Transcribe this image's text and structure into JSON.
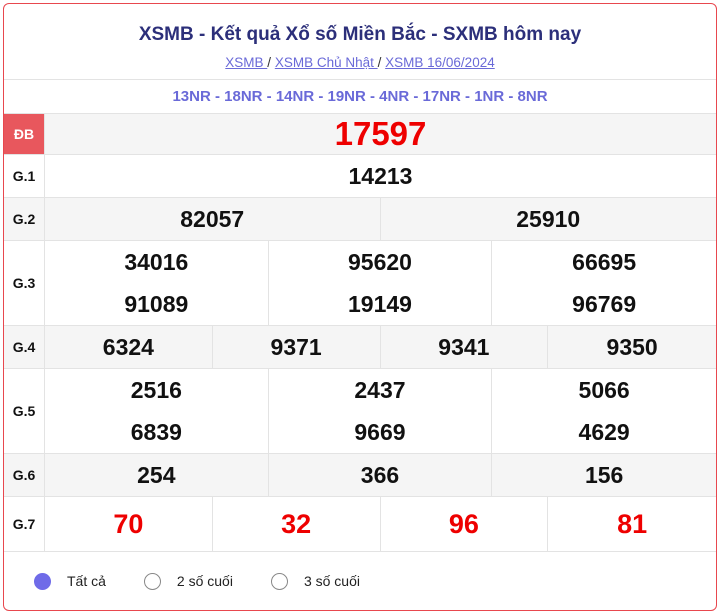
{
  "title": "XSMB - Kết quả Xổ số Miền Bắc - SXMB hôm nay",
  "breadcrumb": [
    "XSMB ",
    "XSMB Chủ Nhật ",
    "XSMB 16/06/2024"
  ],
  "separator": "/",
  "codes": "13NR - 18NR - 14NR - 19NR - 4NR - 17NR - 1NR - 8NR",
  "prizes": {
    "db": {
      "label": "ĐB",
      "values": [
        "17597"
      ]
    },
    "g1": {
      "label": "G.1",
      "values": [
        "14213"
      ]
    },
    "g2": {
      "label": "G.2",
      "values": [
        "82057",
        "25910"
      ]
    },
    "g3": {
      "label": "G.3",
      "values": [
        "34016",
        "95620",
        "66695",
        "91089",
        "19149",
        "96769"
      ]
    },
    "g4": {
      "label": "G.4",
      "values": [
        "6324",
        "9371",
        "9341",
        "9350"
      ]
    },
    "g5": {
      "label": "G.5",
      "values": [
        "2516",
        "2437",
        "5066",
        "6839",
        "9669",
        "4629"
      ]
    },
    "g6": {
      "label": "G.6",
      "values": [
        "254",
        "366",
        "156"
      ]
    },
    "g7": {
      "label": "G.7",
      "values": [
        "70",
        "32",
        "96",
        "81"
      ]
    }
  },
  "filters": [
    {
      "label": "Tất cả",
      "selected": true
    },
    {
      "label": "2 số cuối",
      "selected": false
    },
    {
      "label": "3 số cuối",
      "selected": false
    }
  ],
  "colors": {
    "accent": "#6f6be8",
    "border": "#e8474e",
    "highlight": "#ee0000"
  }
}
